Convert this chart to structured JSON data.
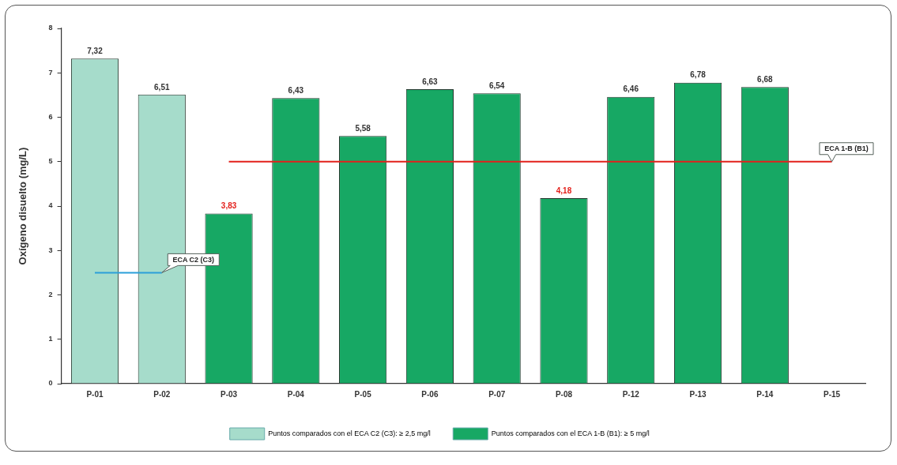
{
  "chart_data": {
    "type": "bar",
    "ylabel": "Oxígeno disuelto (mg/L)",
    "categories": [
      "P-01",
      "P-02",
      "P-03",
      "P-04",
      "P-05",
      "P-06",
      "P-07",
      "P-08",
      "P-12",
      "P-13",
      "P-14",
      "P-15"
    ],
    "series": [
      {
        "name": "Puntos comparados con el ECA C2 (C3): ≥ 2,5 mg/l",
        "color": "#a6dccb",
        "values": [
          7.32,
          6.51,
          null,
          null,
          null,
          null,
          null,
          null,
          null,
          null,
          null,
          null
        ],
        "value_labels": [
          "7,32",
          "6,51",
          null,
          null,
          null,
          null,
          null,
          null,
          null,
          null,
          null,
          null
        ]
      },
      {
        "name": "Puntos comparados con el ECA 1-B (B1): ≥ 5 mg/l",
        "color": "#17a864",
        "values": [
          null,
          null,
          3.83,
          6.43,
          5.58,
          6.63,
          6.54,
          4.18,
          6.46,
          6.78,
          6.68,
          null
        ],
        "value_labels": [
          null,
          null,
          "3,83",
          "6,43",
          "5,58",
          "6,63",
          "6,54",
          "4,18",
          "6,46",
          "6,78",
          "6,68",
          null
        ]
      }
    ],
    "ylim": [
      0,
      8
    ],
    "yticks": [
      0,
      1,
      2,
      3,
      4,
      5,
      6,
      7,
      8
    ],
    "grid": false,
    "legend": "bottom",
    "ref_lines": [
      {
        "axis": "y",
        "value": 2.5,
        "label": "ECA C2 (C3)",
        "color": "#2b9fd9"
      },
      {
        "axis": "y",
        "value": 5,
        "label": "ECA 1-B (B1)",
        "color": "#e3201b"
      }
    ]
  }
}
